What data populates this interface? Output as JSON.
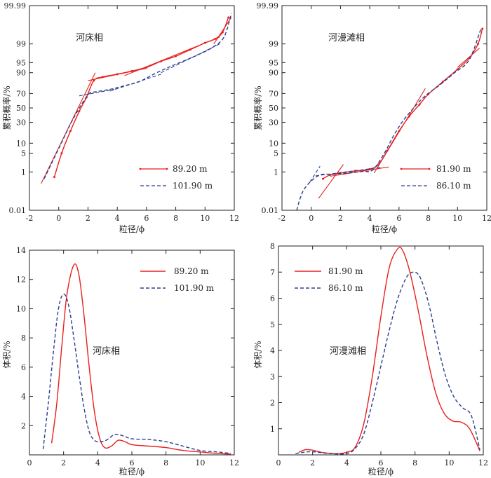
{
  "chart_data": [
    {
      "type": "line",
      "title": "河床相",
      "xlabel": "粒径/ϕ",
      "ylabel": "累积概率/%",
      "y_scale": "probability",
      "xlim": [
        -2,
        12
      ],
      "ylim": [
        0.01,
        99.99
      ],
      "x_ticks": [
        "-2",
        "0",
        "2",
        "4",
        "6",
        "8",
        "10",
        "12"
      ],
      "y_ticks": [
        "0.01",
        "1",
        "5",
        "10",
        "30",
        "50",
        "70",
        "90",
        "95",
        "99",
        "99.99"
      ],
      "legend_position": "bottom-right",
      "series": [
        {
          "name": "89.20 m",
          "color": "#e8201d",
          "style": "solid-dots",
          "x": [
            -0.3,
            0.2,
            0.8,
            1.4,
            1.9,
            2.4,
            3.0,
            4.0,
            5.0,
            6.0,
            7.0,
            8.0,
            9.0,
            10.0,
            10.7,
            11.2,
            11.6
          ],
          "y": [
            0.6,
            5,
            20,
            45,
            65,
            84,
            87,
            89,
            91,
            93,
            95.5,
            97,
            98.3,
            99.1,
            99.4,
            99.7,
            99.95
          ],
          "fit_lines": [
            {
              "x": [
                -1.2,
                2.5
              ],
              "y": [
                0.3,
                90
              ]
            },
            {
              "x": [
                2.0,
                6.0
              ],
              "y": [
                84,
                92.5
              ]
            },
            {
              "x": [
                4.5,
                11.0
              ],
              "y": [
                88,
                99.5
              ]
            },
            {
              "x": [
                10.6,
                11.8
              ],
              "y": [
                99.0,
                99.95
              ]
            }
          ]
        },
        {
          "name": "101.90 m",
          "color": "#2c3e91",
          "style": "dashed",
          "x": [
            -1.0,
            0.0,
            1.0,
            2.0,
            2.5,
            3.5,
            4.5,
            5.5,
            6.5,
            7.5,
            8.5,
            9.5,
            10.5,
            11.3,
            11.8
          ],
          "y": [
            0.5,
            7,
            35,
            68,
            72,
            75,
            79,
            83,
            89,
            93,
            95.5,
            97.3,
            98.6,
            99.5,
            99.97
          ],
          "fit_lines": [
            {
              "x": [
                1.4,
                3.8
              ],
              "y": [
                67,
                75
              ]
            },
            {
              "x": [
                3.5,
                7.0
              ],
              "y": [
                73,
                89
              ]
            },
            {
              "x": [
                7.0,
                11.0
              ],
              "y": [
                90,
                99.0
              ]
            }
          ]
        }
      ]
    },
    {
      "type": "line",
      "title": "河漫滩相",
      "xlabel": "粒径/ϕ",
      "ylabel": "累积概率/%",
      "y_scale": "probability",
      "xlim": [
        -2,
        12
      ],
      "ylim": [
        0.01,
        99.99
      ],
      "x_ticks": [
        "-2",
        "0",
        "2",
        "4",
        "6",
        "8",
        "10",
        "12"
      ],
      "y_ticks": [
        "0.01",
        "1",
        "5",
        "10",
        "30",
        "50",
        "70",
        "90",
        "95",
        "99",
        "99.99"
      ],
      "legend_position": "bottom-right",
      "series": [
        {
          "name": "81.90 m",
          "color": "#e8201d",
          "style": "solid-dots",
          "x": [
            0.8,
            1.3,
            2.0,
            3.0,
            4.0,
            4.6,
            5.2,
            6.0,
            6.7,
            7.4,
            8.0,
            9.0,
            10.0,
            10.8,
            11.4,
            11.7
          ],
          "y": [
            0.5,
            0.75,
            0.9,
            1.1,
            1.3,
            2,
            6,
            20,
            38,
            55,
            69,
            83,
            92,
            96.5,
            99,
            99.8
          ],
          "fit_lines": [
            {
              "x": [
                0.5,
                2.2
              ],
              "y": [
                0.05,
                2
              ]
            },
            {
              "x": [
                1.3,
                5.3
              ],
              "y": [
                0.65,
                1.6
              ]
            },
            {
              "x": [
                4.3,
                7.8
              ],
              "y": [
                0.9,
                76
              ]
            },
            {
              "x": [
                10.0,
                11.5
              ],
              "y": [
                93,
                98.5
              ]
            }
          ]
        },
        {
          "name": "86.10 m",
          "color": "#2c3e91",
          "style": "dashed",
          "x": [
            -1.0,
            -0.5,
            0.5,
            1.5,
            2.5,
            3.5,
            4.2,
            5.0,
            5.6,
            6.2,
            7.0,
            7.8,
            8.8,
            9.8,
            10.8,
            11.6
          ],
          "y": [
            0.01,
            0.15,
            0.7,
            0.8,
            0.9,
            1.05,
            1.2,
            5,
            15,
            30,
            50,
            67,
            80,
            90,
            96,
            99.8
          ],
          "fit_lines": [
            {
              "x": [
                -0.1,
                0.6
              ],
              "y": [
                0.35,
                1.7
              ]
            },
            {
              "x": [
                0.3,
                4.8
              ],
              "y": [
                0.68,
                1.55
              ]
            }
          ]
        }
      ]
    },
    {
      "type": "line",
      "title": "河床相",
      "xlabel": "粒径/ϕ",
      "ylabel": "体积/%",
      "xlim": [
        0,
        12
      ],
      "ylim": [
        0,
        14
      ],
      "x_ticks": [
        "0",
        "2",
        "4",
        "6",
        "8",
        "10",
        "12"
      ],
      "y_ticks": [
        "2",
        "4",
        "6",
        "8",
        "10",
        "12",
        "14"
      ],
      "legend_position": "top-right",
      "series": [
        {
          "name": "89.20 m",
          "color": "#e8201d",
          "style": "solid",
          "x": [
            1.3,
            1.6,
            1.9,
            2.2,
            2.6,
            2.9,
            3.2,
            3.5,
            3.8,
            4.1,
            4.4,
            4.8,
            5.2,
            5.6,
            6.0,
            7.0,
            8.0,
            9.0,
            10.0,
            11.0,
            11.8
          ],
          "y": [
            0.8,
            3.5,
            7.5,
            11,
            13.0,
            12.3,
            9.5,
            6,
            3,
            1.2,
            0.5,
            0.6,
            1.0,
            0.9,
            0.7,
            0.6,
            0.5,
            0.3,
            0.2,
            0.1,
            0.05
          ]
        },
        {
          "name": "101.90 m",
          "color": "#2c3e91",
          "style": "dashed",
          "x": [
            0.8,
            1.1,
            1.4,
            1.7,
            2.0,
            2.3,
            2.6,
            2.9,
            3.2,
            3.5,
            3.8,
            4.1,
            4.5,
            5.0,
            5.5,
            6.0,
            7.0,
            8.0,
            9.0,
            10.0,
            11.0,
            11.8
          ],
          "y": [
            0.4,
            3.5,
            7,
            10,
            11.0,
            10.2,
            8,
            5.5,
            3.2,
            1.6,
            1.0,
            0.9,
            1.0,
            1.4,
            1.3,
            1.1,
            1.05,
            0.9,
            0.6,
            0.3,
            0.2,
            0.1
          ]
        }
      ]
    },
    {
      "type": "line",
      "title": "河漫滩相",
      "xlabel": "粒径/ϕ",
      "ylabel": "体积/%",
      "xlim": [
        0,
        12
      ],
      "ylim": [
        0,
        8
      ],
      "x_ticks": [
        "0",
        "2",
        "4",
        "6",
        "8",
        "10",
        "12"
      ],
      "y_ticks": [
        "1",
        "2",
        "3",
        "4",
        "5",
        "6",
        "7",
        "8"
      ],
      "legend_position": "top-left",
      "series": [
        {
          "name": "81.90 m",
          "color": "#e8201d",
          "style": "solid",
          "x": [
            1.2,
            1.6,
            2.0,
            2.5,
            3.0,
            3.5,
            4.0,
            4.5,
            5.0,
            5.5,
            6.0,
            6.5,
            7.0,
            7.3,
            7.7,
            8.2,
            8.7,
            9.2,
            9.7,
            10.2,
            10.7,
            11.2,
            11.8
          ],
          "y": [
            0.1,
            0.2,
            0.18,
            0.1,
            0.06,
            0.05,
            0.1,
            0.3,
            1.2,
            3.0,
            5.3,
            7.2,
            7.9,
            7.8,
            7.0,
            5.5,
            3.8,
            2.4,
            1.6,
            1.3,
            1.25,
            1.0,
            0.15
          ]
        },
        {
          "name": "86.10 m",
          "color": "#2c3e91",
          "style": "dashed",
          "x": [
            1.0,
            1.5,
            2.0,
            3.0,
            4.0,
            4.5,
            5.0,
            5.5,
            6.0,
            6.5,
            7.0,
            7.5,
            7.9,
            8.3,
            8.8,
            9.3,
            9.8,
            10.3,
            10.8,
            11.3,
            11.8
          ],
          "y": [
            0.05,
            0.1,
            0.12,
            0.05,
            0.05,
            0.25,
            0.8,
            2.0,
            3.4,
            4.8,
            6.0,
            6.8,
            7.0,
            6.8,
            5.8,
            4.3,
            3.0,
            2.2,
            1.8,
            1.5,
            0.2
          ]
        }
      ]
    }
  ]
}
